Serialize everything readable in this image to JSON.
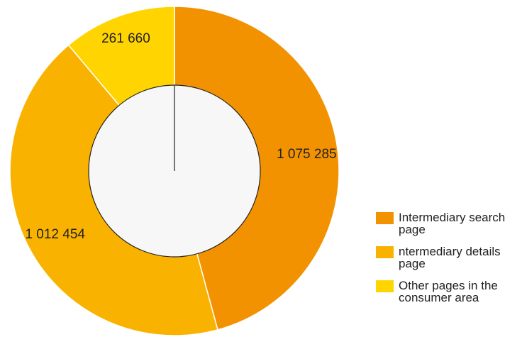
{
  "chart_data": {
    "type": "pie",
    "title": "",
    "categories": [
      "Intermediary search page",
      "ntermediary details page",
      "Other pages in the consumer area"
    ],
    "values": [
      1075285,
      1012454,
      261660
    ],
    "value_labels": [
      "1 075 285",
      "1 012 454",
      "261 660"
    ],
    "colors": [
      "#f39200",
      "#f9b200",
      "#ffd400"
    ],
    "donut": true,
    "center_color": "#f7f7f7",
    "legend_position": "bottom-right"
  }
}
